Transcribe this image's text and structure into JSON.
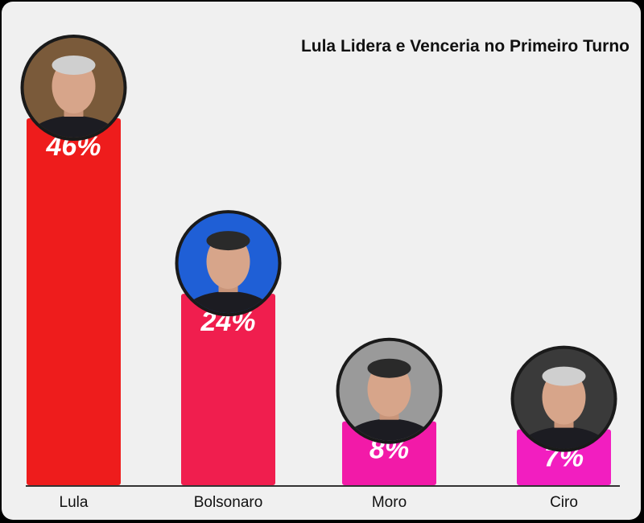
{
  "chart_data": {
    "type": "bar",
    "title": "Lula Lidera e Venceria no Primeiro Turno",
    "categories": [
      "Lula",
      "Bolsonaro",
      "Moro",
      "Ciro"
    ],
    "values": [
      46,
      24,
      8,
      7
    ],
    "value_labels": [
      "46%",
      "24%",
      "8%",
      "7%"
    ],
    "bar_colors": [
      "#ee1c1c",
      "#f01e4e",
      "#f21aa8",
      "#f21ec0"
    ],
    "avatar_backgrounds": [
      "#7a5a3a",
      "#1f5fd6",
      "#9a9a9a",
      "#3a3a3a"
    ],
    "xlabel": "",
    "ylabel": "",
    "ylim": [
      0,
      46
    ],
    "grid": false,
    "legend": "none"
  }
}
